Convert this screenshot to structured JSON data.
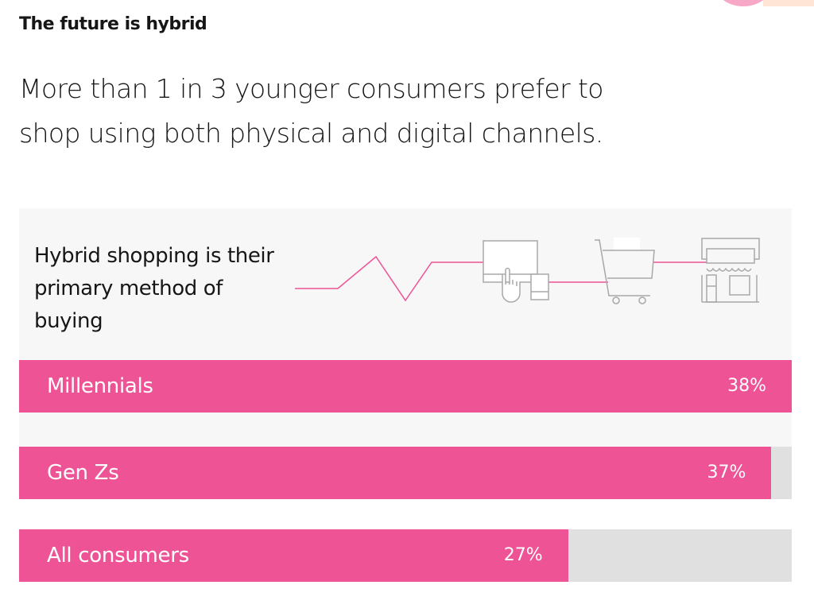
{
  "eyebrow": "The future is hybrid",
  "headline": "More than 1 in 3 younger consumers prefer to shop using both physical and digital channels.",
  "chart_data": {
    "type": "bar",
    "orientation": "horizontal",
    "title": "Hybrid shopping is their primary method of buying",
    "categories": [
      "Millennials",
      "Gen Zs",
      "All consumers"
    ],
    "values": [
      38,
      37,
      27
    ],
    "value_labels": [
      "38%",
      "37%",
      "27%"
    ],
    "xlim": [
      0,
      38
    ],
    "grid": false,
    "colors": {
      "bar": "#ee5396",
      "track": "#e0e0e0",
      "panel": "#f7f7f7"
    }
  },
  "icons": [
    "tablet-touch-icon",
    "shopping-cart-icon",
    "storefront-icon"
  ]
}
